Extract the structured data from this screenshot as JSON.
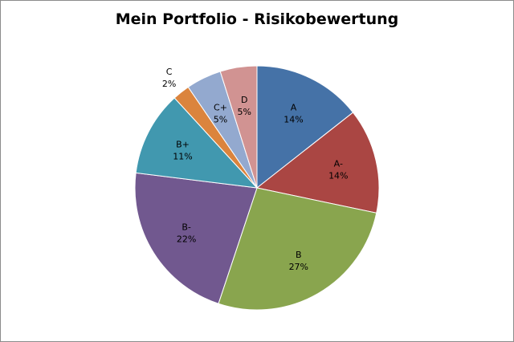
{
  "chart_data": {
    "type": "pie",
    "title": "Mein Portfolio - Risikobewertung",
    "legend": "none",
    "start_angle_deg": 0,
    "direction": "clockwise",
    "slices": [
      {
        "label": "A",
        "percent_label": "14%",
        "value": 14.5,
        "color": "#4572a7"
      },
      {
        "label": "A-",
        "percent_label": "14%",
        "value": 14.0,
        "color": "#aa4643"
      },
      {
        "label": "B",
        "percent_label": "27%",
        "value": 27.0,
        "color": "#89a54e"
      },
      {
        "label": "B-",
        "percent_label": "22%",
        "value": 22.0,
        "color": "#71588f"
      },
      {
        "label": "B+",
        "percent_label": "11%",
        "value": 11.3,
        "color": "#4198af"
      },
      {
        "label": "C",
        "percent_label": "2%",
        "value": 2.3,
        "color": "#db843d"
      },
      {
        "label": "C+",
        "percent_label": "5%",
        "value": 4.7,
        "color": "#93a9cf"
      },
      {
        "label": "D",
        "percent_label": "5%",
        "value": 4.9,
        "color": "#d19392"
      }
    ]
  }
}
